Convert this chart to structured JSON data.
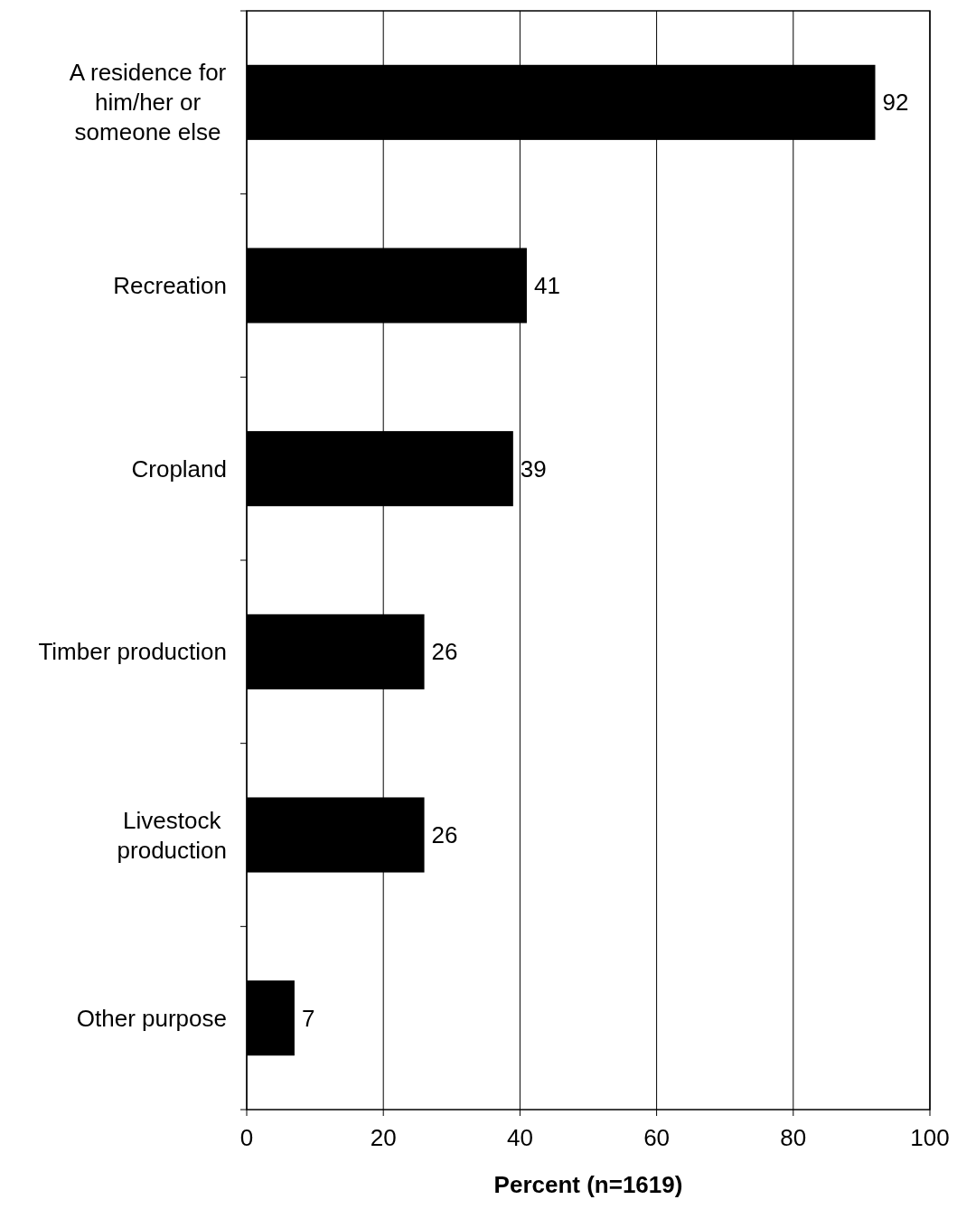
{
  "chart_data": {
    "type": "bar",
    "orientation": "horizontal",
    "xlabel": "Percent (n=1619)",
    "categories": [
      "A residence for him/her or someone else",
      "Recreation",
      "Cropland",
      "Timber production",
      "Livestock production",
      "Other purpose"
    ],
    "values": [
      92,
      41,
      39,
      26,
      26,
      7
    ],
    "color": "#000000",
    "xlim": [
      0,
      100
    ],
    "xticks": [
      0,
      20,
      40,
      60,
      80,
      100
    ],
    "grid": "x",
    "data_labels": true
  }
}
